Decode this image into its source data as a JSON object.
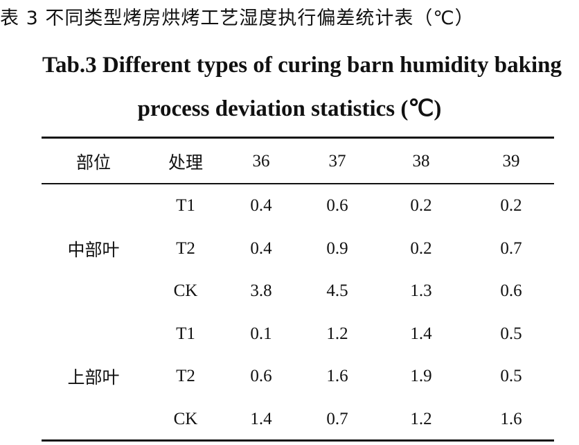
{
  "title_cn": "表 3 不同类型烤房烘烤工艺湿度执行偏差统计表（℃）",
  "title_en": [
    "Tab.3 Different types of curing barn humidity baking",
    "process deviation statistics (℃)"
  ],
  "table": {
    "header": [
      "部位",
      "处理",
      36,
      37,
      38,
      39
    ],
    "groups": [
      {
        "part": "中部叶",
        "rows": [
          [
            "T1",
            0.4,
            0.6,
            0.2,
            0.2
          ],
          [
            "T2",
            0.4,
            0.9,
            0.2,
            0.7
          ],
          [
            "CK",
            3.8,
            4.5,
            1.3,
            0.6
          ]
        ]
      },
      {
        "part": "上部叶",
        "rows": [
          [
            "T1",
            0.1,
            1.2,
            1.4,
            0.5
          ],
          [
            "T2",
            0.6,
            1.6,
            1.9,
            0.5
          ],
          [
            "CK",
            1.4,
            0.7,
            1.2,
            1.6
          ]
        ]
      }
    ]
  }
}
